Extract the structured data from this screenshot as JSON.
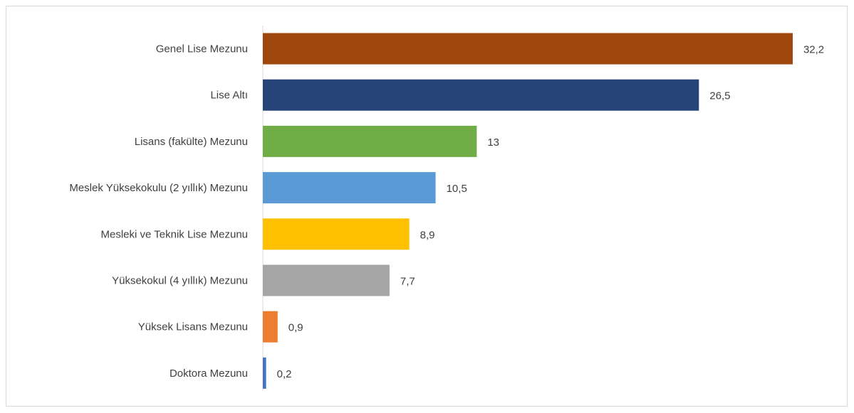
{
  "chart_data": {
    "type": "bar",
    "orientation": "horizontal",
    "categories": [
      "Genel Lise Mezunu",
      "Lise Altı",
      "Lisans (fakülte) Mezunu",
      "Meslek Yüksekokulu (2 yıllık) Mezunu",
      "Mesleki ve Teknik Lise Mezunu",
      "Yüksekokul (4 yıllık) Mezunu",
      "Yüksek Lisans Mezunu",
      "Doktora Mezunu"
    ],
    "values": [
      32.2,
      26.5,
      13,
      10.5,
      8.9,
      7.7,
      0.9,
      0.2
    ],
    "value_labels": [
      "32,2",
      "26,5",
      "13",
      "10,5",
      "8,9",
      "7,7",
      "0,9",
      "0,2"
    ],
    "colors": [
      "#9e480e",
      "#264478",
      "#70ad47",
      "#5b9bd5",
      "#ffc000",
      "#a5a5a5",
      "#ed7d31",
      "#4472c4"
    ],
    "title": "",
    "xlabel": "",
    "ylabel": "",
    "xlim": [
      0,
      33.5
    ],
    "grid": false,
    "legend": "none"
  }
}
